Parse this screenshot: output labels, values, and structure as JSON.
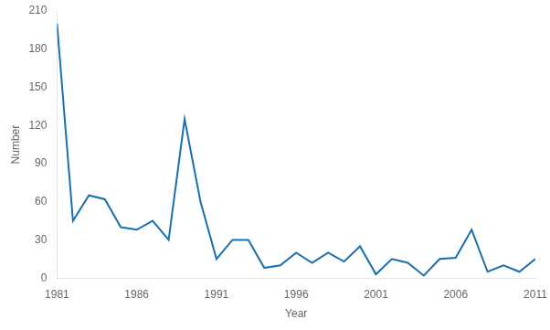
{
  "chart_data": {
    "type": "line",
    "x": [
      1981,
      1982,
      1983,
      1984,
      1985,
      1986,
      1987,
      1988,
      1989,
      1990,
      1991,
      1992,
      1993,
      1994,
      1995,
      1996,
      1997,
      1998,
      1999,
      2000,
      2001,
      2002,
      2003,
      2004,
      2005,
      2006,
      2007,
      2008,
      2009,
      2010,
      2011
    ],
    "values": [
      200,
      45,
      65,
      62,
      40,
      38,
      45,
      30,
      125,
      60,
      15,
      30,
      30,
      8,
      10,
      20,
      12,
      20,
      13,
      25,
      3,
      15,
      12,
      2,
      15,
      16,
      38,
      5,
      10,
      5,
      15
    ],
    "color": "#1a6fad",
    "xlim": [
      1981,
      2011
    ],
    "ylim": [
      0,
      210
    ],
    "xticks": [
      1981,
      1986,
      1991,
      1996,
      2001,
      2006,
      2011
    ],
    "yticks": [
      0,
      30,
      60,
      90,
      120,
      150,
      180,
      210
    ],
    "xlabel": "Year",
    "ylabel": "Number",
    "grid": false
  }
}
